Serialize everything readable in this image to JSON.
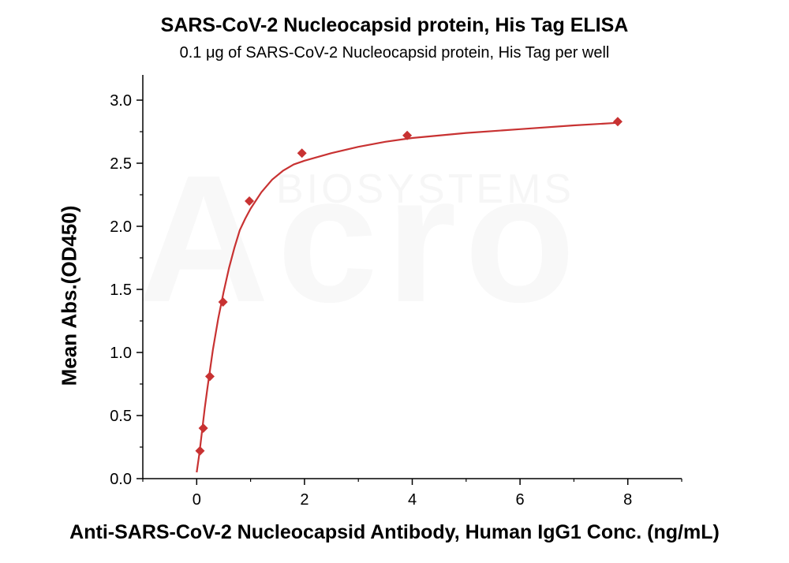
{
  "chart_data": {
    "type": "scatter",
    "title": "SARS-CoV-2 Nucleocapsid protein, His Tag ELISA",
    "subtitle": "0.1 μg of SARS-CoV-2 Nucleocapsid protein, His Tag per well",
    "xlabel": "Anti-SARS-CoV-2 Nucleocapsid Antibody, Human IgG1 Conc. (ng/mL)",
    "ylabel": "Mean Abs.(OD450)",
    "xlim": [
      -1,
      9
    ],
    "ylim": [
      0,
      3.2
    ],
    "x_ticks": [
      0,
      2,
      4,
      6,
      8
    ],
    "y_ticks": [
      0.0,
      0.5,
      1.0,
      1.5,
      2.0,
      2.5,
      3.0
    ],
    "x_tick_labels": [
      "0",
      "2",
      "4",
      "6",
      "8"
    ],
    "y_tick_labels": [
      "0.0",
      "0.5",
      "1.0",
      "1.5",
      "2.0",
      "2.5",
      "3.0"
    ],
    "grid": false,
    "marker": "diamond",
    "color": "#c83232",
    "series": [
      {
        "x": [
          0.061,
          0.122,
          0.244,
          0.488,
          0.977,
          1.953,
          3.906,
          7.813
        ],
        "y": [
          0.22,
          0.4,
          0.81,
          1.4,
          2.2,
          2.58,
          2.72,
          2.83
        ]
      }
    ],
    "fit_curve": {
      "x": [
        0.0,
        0.05,
        0.1,
        0.15,
        0.2,
        0.3,
        0.4,
        0.5,
        0.6,
        0.7,
        0.8,
        0.9,
        1.0,
        1.2,
        1.4,
        1.6,
        1.8,
        2.0,
        2.5,
        3.0,
        3.5,
        4.0,
        5.0,
        6.0,
        7.0,
        7.8
      ],
      "y": [
        0.05,
        0.2,
        0.38,
        0.56,
        0.72,
        1.02,
        1.27,
        1.48,
        1.67,
        1.83,
        1.97,
        2.06,
        2.14,
        2.27,
        2.37,
        2.44,
        2.49,
        2.52,
        2.58,
        2.63,
        2.67,
        2.7,
        2.74,
        2.77,
        2.8,
        2.82
      ]
    }
  },
  "watermark": {
    "logo": "Acro",
    "sub": "BIOSYSTEMS"
  }
}
